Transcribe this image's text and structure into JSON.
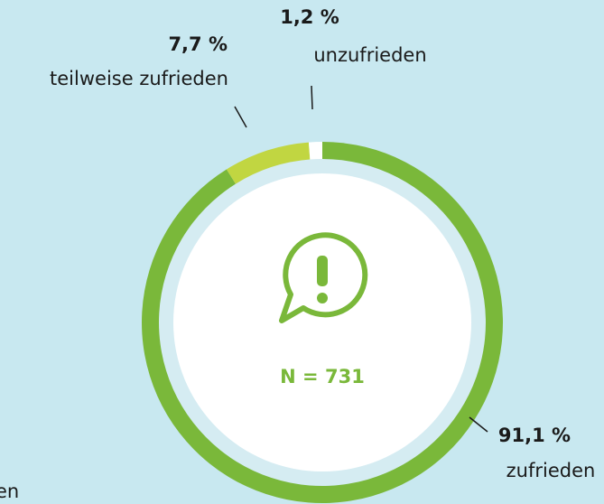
{
  "chart_data": {
    "type": "donut",
    "categories": [
      "zufrieden",
      "teilweise zufrieden",
      "unzufrieden"
    ],
    "values": [
      91.1,
      7.7,
      1.2
    ],
    "value_labels": [
      "91,1 %",
      "7,7 %",
      "1,2 %"
    ],
    "colors": [
      "#7ab83a",
      "#c1d641",
      "#ffffff"
    ],
    "center_label": "N = 731",
    "fragment": "en"
  }
}
